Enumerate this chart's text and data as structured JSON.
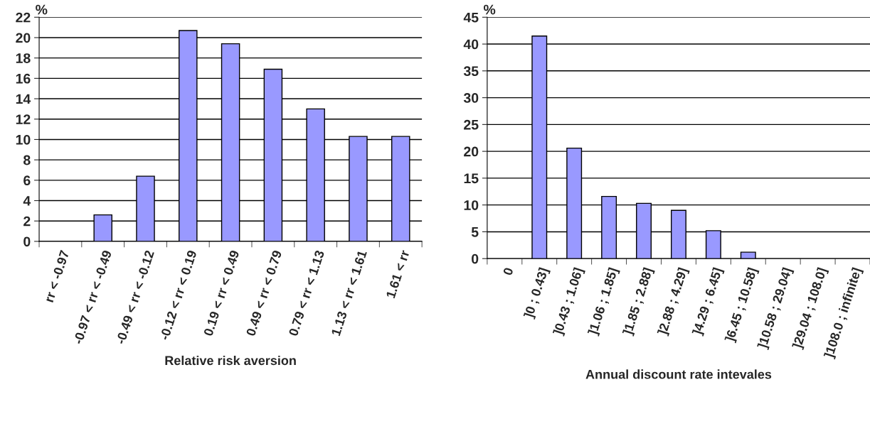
{
  "chart_data": [
    {
      "type": "bar",
      "xlabel": "Relative risk aversion",
      "ylabel": "%",
      "categories": [
        "rr < -0.97",
        "-0.97 < rr < -0.49",
        "-0.49 < rr < -0.12",
        "-0.12 < rr < 0.19",
        "0.19 < rr < 0.49",
        "0.49 < rr < 0.79",
        "0.79 < rr < 1.13",
        "1.13 < rr < 1.61",
        "1.61 < rr"
      ],
      "series": [
        {
          "color": "#9999ff",
          "values": [
            0,
            2.6,
            6.4,
            20.7,
            19.4,
            16.9,
            13.0,
            10.3,
            10.3
          ]
        }
      ],
      "ylim": [
        0,
        22
      ],
      "yticks": [
        0,
        2,
        4,
        6,
        8,
        10,
        12,
        14,
        16,
        18,
        20,
        22
      ],
      "grid": "y",
      "legend": false
    },
    {
      "type": "bar",
      "xlabel": "Annual discount rate intevales",
      "ylabel": "%",
      "categories": [
        "0",
        "]0 ; 0.43]",
        "]0.43 ; 1.06]",
        "]1.06 ; 1.85]",
        "]1.85 ; 2.88]",
        "]2.88 ; 4.29]",
        "]4.29 ; 6.45]",
        "]6.45 ; 10.58]",
        "]10.58 ; 29.04]",
        "]29.04 ; 108.0]",
        "]108.0 ; infinite]"
      ],
      "series": [
        {
          "color": "#9999ff",
          "values": [
            0,
            41.5,
            20.6,
            11.6,
            10.3,
            9.0,
            5.2,
            1.2,
            0,
            0,
            0
          ]
        }
      ],
      "ylim": [
        0,
        45
      ],
      "yticks": [
        0,
        5,
        10,
        15,
        20,
        25,
        30,
        35,
        40,
        45
      ],
      "grid": "y",
      "legend": false
    }
  ]
}
